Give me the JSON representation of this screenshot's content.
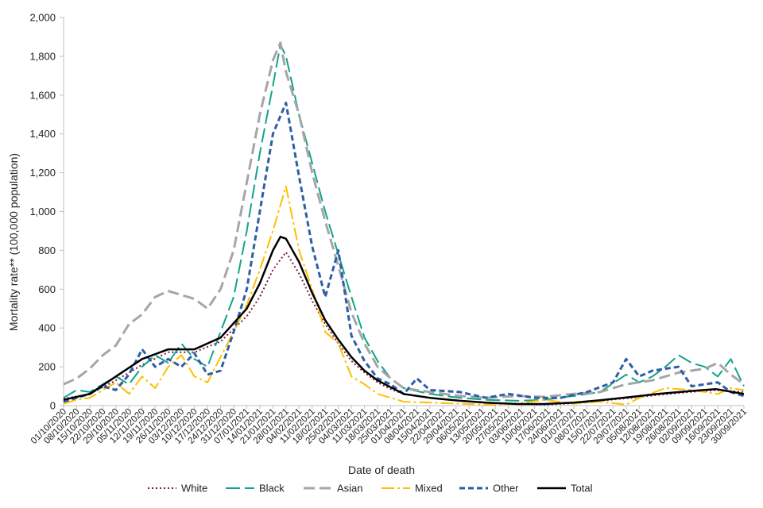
{
  "chart_data": {
    "type": "line",
    "xlabel": "Date of death",
    "ylabel": "Mortality rate** (100,000 population)",
    "ylim": [
      0,
      2000
    ],
    "yticks": [
      0,
      200,
      400,
      600,
      800,
      1000,
      1200,
      1400,
      1600,
      1800,
      2000
    ],
    "ytick_labels": [
      "0",
      "200",
      "400",
      "600",
      "800",
      "1,000",
      "1,200",
      "1,400",
      "1,600",
      "1,800",
      "2,000"
    ],
    "xlim": [
      "2020-10-01",
      "2021-09-30"
    ],
    "xtick_labels": [
      "01/10/2020",
      "08/10/2020",
      "15/10/2020",
      "22/10/2020",
      "29/10/2020",
      "05/11/2020",
      "12/11/2020",
      "19/11/2020",
      "26/11/2020",
      "03/12/2020",
      "10/12/2020",
      "17/12/2020",
      "24/12/2020",
      "31/12/2020",
      "07/01/2021",
      "14/01/2021",
      "21/01/2021",
      "28/01/2021",
      "04/02/2021",
      "11/02/2021",
      "18/02/2021",
      "25/02/2021",
      "04/03/2021",
      "11/03/2021",
      "18/03/2021",
      "25/03/2021",
      "01/04/2021",
      "08/04/2021",
      "15/04/2021",
      "22/04/2021",
      "29/04/2021",
      "06/05/2021",
      "13/05/2021",
      "20/05/2021",
      "27/05/2021",
      "03/06/2021",
      "10/06/2021",
      "17/06/2021",
      "24/06/2021",
      "01/07/2021",
      "08/07/2021",
      "15/07/2021",
      "22/07/2021",
      "29/07/2021",
      "05/08/2021",
      "12/08/2021",
      "19/08/2021",
      "26/08/2021",
      "02/09/2021",
      "09/09/2021",
      "16/09/2021",
      "23/09/2021",
      "30/09/2021"
    ],
    "legend_position": "bottom",
    "grid": false,
    "series": [
      {
        "name": "White",
        "color": "#7f1d3a",
        "dash": "2,3",
        "width": 2,
        "points": [
          [
            "2020-10-01",
            35
          ],
          [
            "2020-10-15",
            60
          ],
          [
            "2020-10-29",
            130
          ],
          [
            "2020-11-12",
            210
          ],
          [
            "2020-11-26",
            275
          ],
          [
            "2020-12-10",
            275
          ],
          [
            "2020-12-24",
            330
          ],
          [
            "2021-01-07",
            460
          ],
          [
            "2021-01-14",
            560
          ],
          [
            "2021-01-21",
            700
          ],
          [
            "2021-01-28",
            790
          ],
          [
            "2021-02-04",
            680
          ],
          [
            "2021-02-11",
            540
          ],
          [
            "2021-02-18",
            420
          ],
          [
            "2021-02-25",
            320
          ],
          [
            "2021-03-04",
            230
          ],
          [
            "2021-03-11",
            170
          ],
          [
            "2021-03-18",
            120
          ],
          [
            "2021-03-25",
            85
          ],
          [
            "2021-04-01",
            60
          ],
          [
            "2021-04-15",
            40
          ],
          [
            "2021-05-01",
            25
          ],
          [
            "2021-05-15",
            15
          ],
          [
            "2021-06-01",
            8
          ],
          [
            "2021-06-15",
            5
          ],
          [
            "2021-07-01",
            12
          ],
          [
            "2021-07-15",
            25
          ],
          [
            "2021-08-01",
            40
          ],
          [
            "2021-08-15",
            55
          ],
          [
            "2021-09-01",
            70
          ],
          [
            "2021-09-15",
            80
          ],
          [
            "2021-09-30",
            70
          ]
        ]
      },
      {
        "name": "Black",
        "color": "#12a38c",
        "dash": "18,6",
        "width": 2,
        "points": [
          [
            "2020-10-01",
            40
          ],
          [
            "2020-10-08",
            80
          ],
          [
            "2020-10-15",
            70
          ],
          [
            "2020-10-22",
            110
          ],
          [
            "2020-10-29",
            150
          ],
          [
            "2020-11-05",
            110
          ],
          [
            "2020-11-12",
            200
          ],
          [
            "2020-11-19",
            260
          ],
          [
            "2020-11-26",
            220
          ],
          [
            "2020-12-03",
            320
          ],
          [
            "2020-12-10",
            240
          ],
          [
            "2020-12-17",
            200
          ],
          [
            "2020-12-24",
            380
          ],
          [
            "2020-12-31",
            560
          ],
          [
            "2021-01-07",
            900
          ],
          [
            "2021-01-14",
            1300
          ],
          [
            "2021-01-21",
            1650
          ],
          [
            "2021-01-25",
            1860
          ],
          [
            "2021-01-28",
            1800
          ],
          [
            "2021-02-04",
            1500
          ],
          [
            "2021-02-11",
            1250
          ],
          [
            "2021-02-18",
            1000
          ],
          [
            "2021-02-25",
            780
          ],
          [
            "2021-03-04",
            560
          ],
          [
            "2021-03-11",
            350
          ],
          [
            "2021-03-18",
            230
          ],
          [
            "2021-03-25",
            140
          ],
          [
            "2021-04-01",
            90
          ],
          [
            "2021-04-15",
            60
          ],
          [
            "2021-05-01",
            40
          ],
          [
            "2021-05-15",
            30
          ],
          [
            "2021-06-01",
            25
          ],
          [
            "2021-06-15",
            30
          ],
          [
            "2021-07-01",
            50
          ],
          [
            "2021-07-15",
            70
          ],
          [
            "2021-07-29",
            160
          ],
          [
            "2021-08-05",
            120
          ],
          [
            "2021-08-12",
            150
          ],
          [
            "2021-08-19",
            200
          ],
          [
            "2021-08-26",
            260
          ],
          [
            "2021-09-02",
            220
          ],
          [
            "2021-09-09",
            200
          ],
          [
            "2021-09-16",
            150
          ],
          [
            "2021-09-23",
            240
          ],
          [
            "2021-09-30",
            100
          ]
        ]
      },
      {
        "name": "Asian",
        "color": "#a6a6a6",
        "dash": "14,6",
        "width": 3,
        "points": [
          [
            "2020-10-01",
            110
          ],
          [
            "2020-10-08",
            140
          ],
          [
            "2020-10-15",
            190
          ],
          [
            "2020-10-22",
            260
          ],
          [
            "2020-10-29",
            310
          ],
          [
            "2020-11-05",
            420
          ],
          [
            "2020-11-12",
            470
          ],
          [
            "2020-11-19",
            560
          ],
          [
            "2020-11-26",
            590
          ],
          [
            "2020-12-03",
            570
          ],
          [
            "2020-12-10",
            550
          ],
          [
            "2020-12-17",
            500
          ],
          [
            "2020-12-24",
            600
          ],
          [
            "2020-12-31",
            800
          ],
          [
            "2021-01-07",
            1150
          ],
          [
            "2021-01-14",
            1500
          ],
          [
            "2021-01-21",
            1780
          ],
          [
            "2021-01-25",
            1870
          ],
          [
            "2021-01-28",
            1720
          ],
          [
            "2021-02-04",
            1500
          ],
          [
            "2021-02-11",
            1200
          ],
          [
            "2021-02-18",
            950
          ],
          [
            "2021-02-25",
            720
          ],
          [
            "2021-03-04",
            480
          ],
          [
            "2021-03-11",
            320
          ],
          [
            "2021-03-18",
            200
          ],
          [
            "2021-03-25",
            140
          ],
          [
            "2021-04-01",
            90
          ],
          [
            "2021-04-15",
            70
          ],
          [
            "2021-05-01",
            50
          ],
          [
            "2021-05-15",
            40
          ],
          [
            "2021-06-01",
            50
          ],
          [
            "2021-06-15",
            45
          ],
          [
            "2021-07-01",
            60
          ],
          [
            "2021-07-15",
            70
          ],
          [
            "2021-07-29",
            110
          ],
          [
            "2021-08-12",
            130
          ],
          [
            "2021-08-26",
            170
          ],
          [
            "2021-09-09",
            190
          ],
          [
            "2021-09-16",
            220
          ],
          [
            "2021-09-23",
            160
          ],
          [
            "2021-09-30",
            110
          ]
        ]
      },
      {
        "name": "Mixed",
        "color": "#ffbf00",
        "dash": "16,4,3,4",
        "width": 2,
        "points": [
          [
            "2020-10-01",
            10
          ],
          [
            "2020-10-08",
            30
          ],
          [
            "2020-10-15",
            40
          ],
          [
            "2020-10-22",
            80
          ],
          [
            "2020-10-29",
            120
          ],
          [
            "2020-11-05",
            60
          ],
          [
            "2020-11-12",
            150
          ],
          [
            "2020-11-19",
            90
          ],
          [
            "2020-11-26",
            200
          ],
          [
            "2020-12-03",
            260
          ],
          [
            "2020-12-10",
            150
          ],
          [
            "2020-12-17",
            120
          ],
          [
            "2020-12-24",
            250
          ],
          [
            "2020-12-31",
            380
          ],
          [
            "2021-01-07",
            520
          ],
          [
            "2021-01-14",
            700
          ],
          [
            "2021-01-21",
            900
          ],
          [
            "2021-01-28",
            1130
          ],
          [
            "2021-02-04",
            800
          ],
          [
            "2021-02-11",
            600
          ],
          [
            "2021-02-18",
            380
          ],
          [
            "2021-02-25",
            320
          ],
          [
            "2021-03-04",
            150
          ],
          [
            "2021-03-11",
            110
          ],
          [
            "2021-03-18",
            60
          ],
          [
            "2021-03-25",
            40
          ],
          [
            "2021-04-01",
            20
          ],
          [
            "2021-04-15",
            15
          ],
          [
            "2021-05-01",
            10
          ],
          [
            "2021-05-15",
            5
          ],
          [
            "2021-06-01",
            10
          ],
          [
            "2021-06-15",
            30
          ],
          [
            "2021-07-01",
            10
          ],
          [
            "2021-07-15",
            20
          ],
          [
            "2021-07-29",
            5
          ],
          [
            "2021-08-05",
            40
          ],
          [
            "2021-08-19",
            90
          ],
          [
            "2021-09-02",
            80
          ],
          [
            "2021-09-16",
            60
          ],
          [
            "2021-09-23",
            90
          ],
          [
            "2021-09-30",
            80
          ]
        ]
      },
      {
        "name": "Other",
        "color": "#2e5ea8",
        "dash": "7,4",
        "width": 3,
        "points": [
          [
            "2020-10-01",
            20
          ],
          [
            "2020-10-08",
            40
          ],
          [
            "2020-10-15",
            60
          ],
          [
            "2020-10-22",
            100
          ],
          [
            "2020-10-29",
            80
          ],
          [
            "2020-11-05",
            160
          ],
          [
            "2020-11-12",
            290
          ],
          [
            "2020-11-19",
            200
          ],
          [
            "2020-11-26",
            240
          ],
          [
            "2020-12-03",
            200
          ],
          [
            "2020-12-10",
            270
          ],
          [
            "2020-12-17",
            160
          ],
          [
            "2020-12-24",
            180
          ],
          [
            "2020-12-31",
            380
          ],
          [
            "2021-01-07",
            600
          ],
          [
            "2021-01-14",
            1000
          ],
          [
            "2021-01-21",
            1400
          ],
          [
            "2021-01-28",
            1560
          ],
          [
            "2021-02-04",
            1180
          ],
          [
            "2021-02-11",
            820
          ],
          [
            "2021-02-18",
            560
          ],
          [
            "2021-02-25",
            800
          ],
          [
            "2021-03-04",
            360
          ],
          [
            "2021-03-11",
            230
          ],
          [
            "2021-03-18",
            140
          ],
          [
            "2021-03-25",
            110
          ],
          [
            "2021-04-01",
            60
          ],
          [
            "2021-04-08",
            140
          ],
          [
            "2021-04-15",
            80
          ],
          [
            "2021-05-01",
            70
          ],
          [
            "2021-05-15",
            40
          ],
          [
            "2021-05-27",
            60
          ],
          [
            "2021-06-10",
            40
          ],
          [
            "2021-06-24",
            40
          ],
          [
            "2021-07-08",
            70
          ],
          [
            "2021-07-22",
            120
          ],
          [
            "2021-07-29",
            240
          ],
          [
            "2021-08-05",
            150
          ],
          [
            "2021-08-12",
            180
          ],
          [
            "2021-08-26",
            200
          ],
          [
            "2021-09-02",
            100
          ],
          [
            "2021-09-16",
            120
          ],
          [
            "2021-09-23",
            70
          ],
          [
            "2021-09-30",
            50
          ]
        ]
      },
      {
        "name": "Total",
        "color": "#000000",
        "dash": "",
        "width": 2.5,
        "points": [
          [
            "2020-10-01",
            30
          ],
          [
            "2020-10-15",
            60
          ],
          [
            "2020-10-29",
            150
          ],
          [
            "2020-11-12",
            240
          ],
          [
            "2020-11-26",
            290
          ],
          [
            "2020-12-10",
            290
          ],
          [
            "2020-12-24",
            350
          ],
          [
            "2021-01-07",
            500
          ],
          [
            "2021-01-14",
            630
          ],
          [
            "2021-01-21",
            800
          ],
          [
            "2021-01-25",
            870
          ],
          [
            "2021-01-28",
            860
          ],
          [
            "2021-02-04",
            740
          ],
          [
            "2021-02-11",
            580
          ],
          [
            "2021-02-18",
            440
          ],
          [
            "2021-02-25",
            340
          ],
          [
            "2021-03-04",
            250
          ],
          [
            "2021-03-11",
            180
          ],
          [
            "2021-03-18",
            130
          ],
          [
            "2021-03-25",
            95
          ],
          [
            "2021-04-01",
            60
          ],
          [
            "2021-04-15",
            40
          ],
          [
            "2021-05-01",
            25
          ],
          [
            "2021-05-15",
            15
          ],
          [
            "2021-06-01",
            8
          ],
          [
            "2021-06-15",
            8
          ],
          [
            "2021-07-01",
            15
          ],
          [
            "2021-07-15",
            28
          ],
          [
            "2021-08-01",
            45
          ],
          [
            "2021-08-15",
            60
          ],
          [
            "2021-09-01",
            75
          ],
          [
            "2021-09-15",
            85
          ],
          [
            "2021-09-30",
            60
          ]
        ]
      }
    ]
  }
}
